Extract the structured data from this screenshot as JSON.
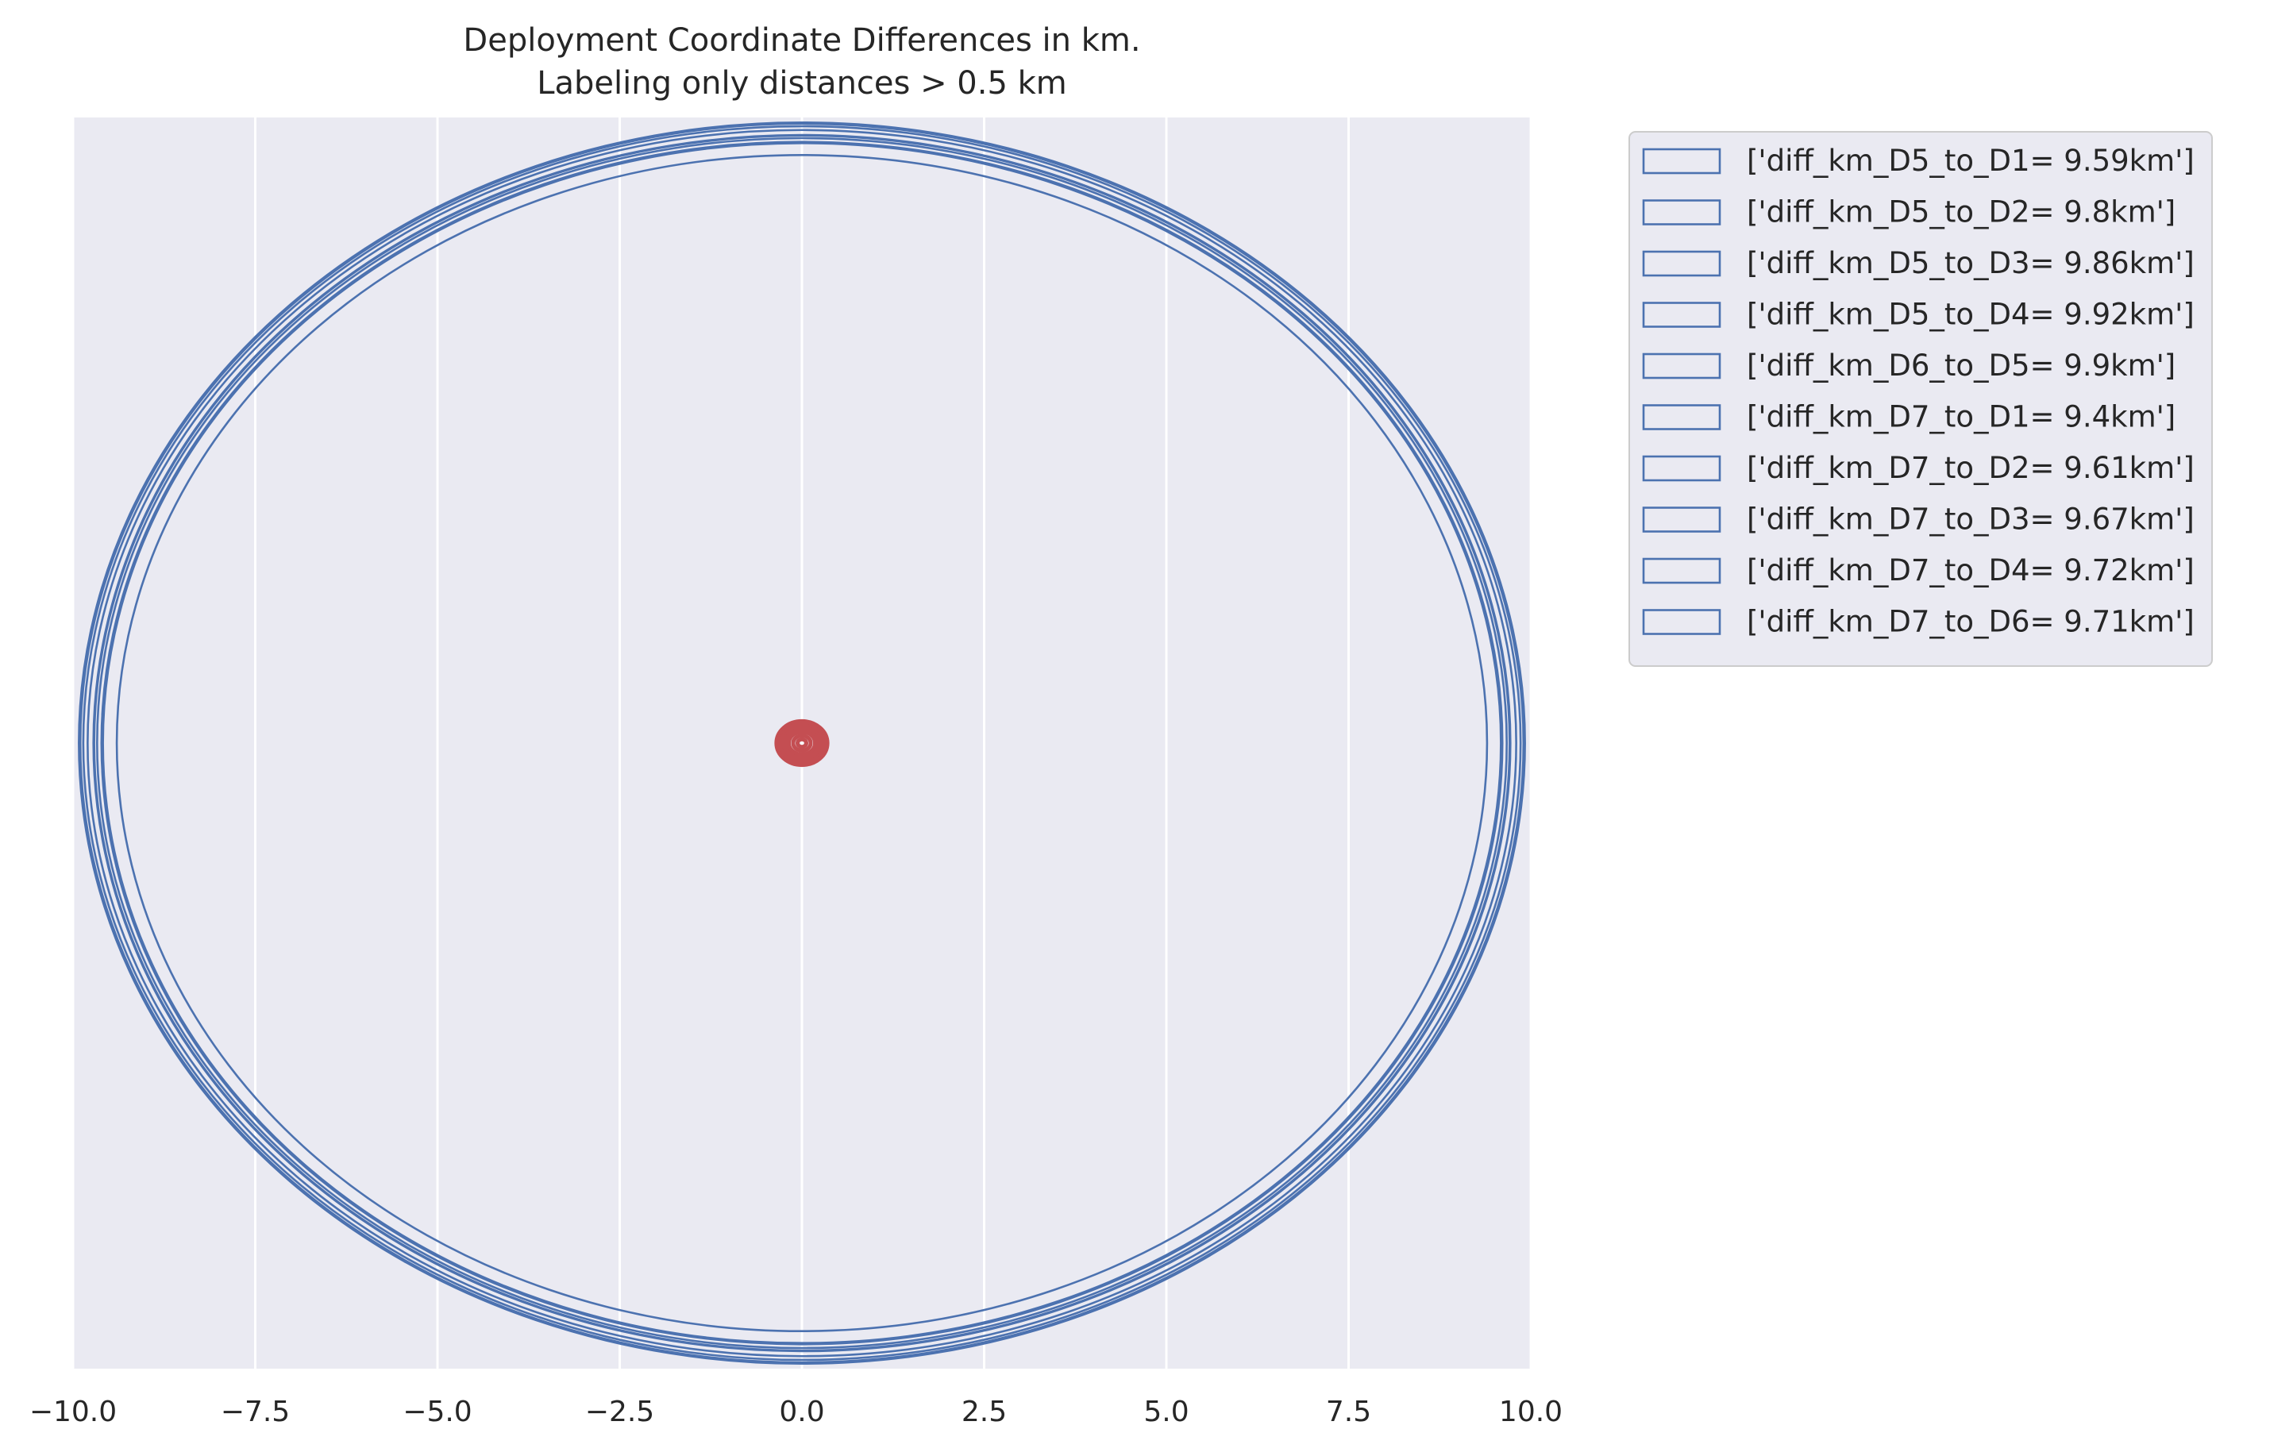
{
  "chart_data": {
    "type": "circles",
    "title_line1": "Deployment Coordinate Differences in km.",
    "title_line2": "Labeling only distances > 0.5 km",
    "xlim": [
      -10,
      10
    ],
    "xticks": [
      "−10.0",
      "−7.5",
      "−5.0",
      "−2.5",
      "0.0",
      "2.5",
      "5.0",
      "7.5",
      "10.0"
    ],
    "xtick_values": [
      -10,
      -7.5,
      -5,
      -2.5,
      0,
      2.5,
      5,
      7.5,
      10
    ],
    "grid": true,
    "legend_placement": "outside-upper-right",
    "colors": {
      "labeled": "#4c72b0",
      "unlabeled": "#c44e52",
      "background": "#eaeaf2",
      "grid": "#ffffff"
    },
    "center": [
      0,
      0
    ],
    "series": [
      {
        "label": "['diff_km_D5_to_D1= 9.59km']",
        "radius": 9.59
      },
      {
        "label": "['diff_km_D5_to_D2= 9.8km']",
        "radius": 9.8
      },
      {
        "label": "['diff_km_D5_to_D3= 9.86km']",
        "radius": 9.86
      },
      {
        "label": "['diff_km_D5_to_D4= 9.92km']",
        "radius": 9.92
      },
      {
        "label": "['diff_km_D6_to_D5= 9.9km']",
        "radius": 9.9
      },
      {
        "label": "['diff_km_D7_to_D1= 9.4km']",
        "radius": 9.4
      },
      {
        "label": "['diff_km_D7_to_D2= 9.61km']",
        "radius": 9.61
      },
      {
        "label": "['diff_km_D7_to_D3= 9.67km']",
        "radius": 9.67
      },
      {
        "label": "['diff_km_D7_to_D4= 9.72km']",
        "radius": 9.72
      },
      {
        "label": "['diff_km_D7_to_D6= 9.71km']",
        "radius": 9.71
      }
    ],
    "small_radii": [
      0.35,
      0.32,
      0.3,
      0.28,
      0.25,
      0.22,
      0.18,
      0.12,
      0.06
    ]
  }
}
